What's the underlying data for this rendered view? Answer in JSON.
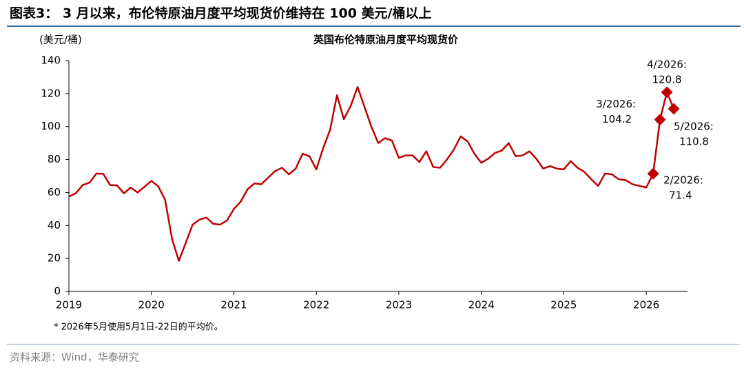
{
  "header": {
    "title": "图表3： 3 月以来，布伦特原油月度平均现货价维持在 100 美元/桶以上"
  },
  "chart_data": {
    "type": "line",
    "title": "英国布伦特原油月度平均现货价",
    "y_label": "(美元/桶)",
    "x": [
      2019,
      2019.0833,
      2019.1667,
      2019.25,
      2019.3333,
      2019.4167,
      2019.5,
      2019.5833,
      2019.6667,
      2019.75,
      2019.8333,
      2019.9167,
      2020,
      2020.0833,
      2020.1667,
      2020.25,
      2020.3333,
      2020.4167,
      2020.5,
      2020.5833,
      2020.6667,
      2020.75,
      2020.8333,
      2020.9167,
      2021,
      2021.0833,
      2021.1667,
      2021.25,
      2021.3333,
      2021.4167,
      2021.5,
      2021.5833,
      2021.6667,
      2021.75,
      2021.8333,
      2021.9167,
      2022,
      2022.0833,
      2022.1667,
      2022.25,
      2022.3333,
      2022.4167,
      2022.5,
      2022.5833,
      2022.6667,
      2022.75,
      2022.8333,
      2022.9167,
      2023,
      2023.0833,
      2023.1667,
      2023.25,
      2023.3333,
      2023.4167,
      2023.5,
      2023.5833,
      2023.6667,
      2023.75,
      2023.8333,
      2023.9167,
      2024,
      2024.0833,
      2024.1667,
      2024.25,
      2024.3333,
      2024.4167,
      2024.5,
      2024.5833,
      2024.6667,
      2024.75,
      2024.8333,
      2024.9167,
      2025,
      2025.0833,
      2025.1667,
      2025.25,
      2025.3333,
      2025.4167,
      2025.5,
      2025.5833,
      2025.6667,
      2025.75,
      2025.8333,
      2025.9167,
      2026,
      2026.0833,
      2026.1667,
      2026.25,
      2026.3333
    ],
    "series": [
      {
        "name": "英国布伦特原油月度平均现货价",
        "color": "#c00000",
        "values": [
          57.5,
          59.5,
          64.5,
          66,
          71.5,
          71.3,
          64.5,
          64.3,
          59.5,
          63,
          60,
          63.5,
          67,
          63.8,
          55.5,
          32,
          18.5,
          29.5,
          40.5,
          43.5,
          44.8,
          41,
          40.5,
          43,
          50,
          54.5,
          62,
          65.5,
          65,
          69,
          73,
          75,
          71,
          74.5,
          83.5,
          82,
          74,
          87,
          98,
          119,
          104.5,
          112.5,
          124,
          112,
          100,
          90,
          93,
          91.5,
          81,
          82.5,
          82.5,
          78.5,
          85,
          75.5,
          75,
          80,
          86,
          94,
          91,
          83.5,
          78,
          80.5,
          84,
          85.5,
          90,
          82,
          82.5,
          85,
          80.5,
          74.5,
          76,
          74.5,
          74,
          79,
          75,
          72.5,
          68,
          64,
          71.5,
          71,
          68,
          67.5,
          65,
          64,
          63,
          71.4,
          104.2,
          120.8,
          110.8
        ]
      }
    ],
    "annotations": [
      {
        "text": "2/2026:",
        "x": 2026.0833,
        "value": 71.4
      },
      {
        "text": "3/2026:",
        "x": 2026.1667,
        "value": 104.2
      },
      {
        "text": "4/2026:",
        "x": 2026.25,
        "value": 120.8
      },
      {
        "text": "5/2026:",
        "x": 2026.3333,
        "value": 110.8
      }
    ],
    "xlim": [
      2019,
      2026.5
    ],
    "xticks": [
      2019,
      2020,
      2021,
      2022,
      2023,
      2024,
      2025,
      2026
    ],
    "ylim": [
      0,
      140
    ],
    "yticks": [
      0,
      20,
      40,
      60,
      80,
      100,
      120,
      140
    ],
    "note": "* 2026年5月使用5月1日-22日的平均价。"
  },
  "footer": {
    "source": "资料来源：Wind，华泰研究"
  }
}
